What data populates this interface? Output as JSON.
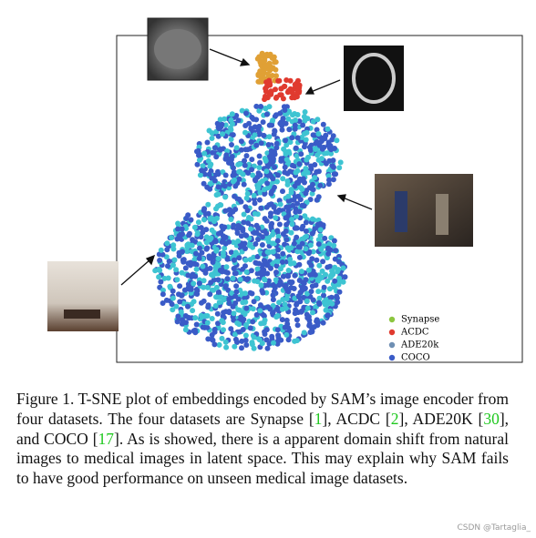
{
  "figure": {
    "legend": [
      {
        "label": "Synapse",
        "color": "#8cc63f"
      },
      {
        "label": "ACDC",
        "color": "#e03a2f"
      },
      {
        "label": "ADE20k",
        "color": "#6f8fb3"
      },
      {
        "label": "COCO",
        "color": "#3a5bc7"
      }
    ]
  },
  "caption": {
    "parts": [
      {
        "text": "Figure 1. T-SNE plot of embeddings encoded by SAM’s image encoder from four datasets. The four datasets are Synapse ["
      },
      {
        "ref": "1"
      },
      {
        "text": "], ACDC ["
      },
      {
        "ref": "2"
      },
      {
        "text": "], ADE20K ["
      },
      {
        "ref": "30"
      },
      {
        "text": "], and COCO ["
      },
      {
        "ref": "17"
      },
      {
        "text": "]. As is showed, there is a apparent domain shift from natural images to medical images in latent space. This may explain why SAM fails to have good performance on unseen medical image datasets."
      }
    ]
  },
  "watermark": "CSDN @Tartaglia_"
}
